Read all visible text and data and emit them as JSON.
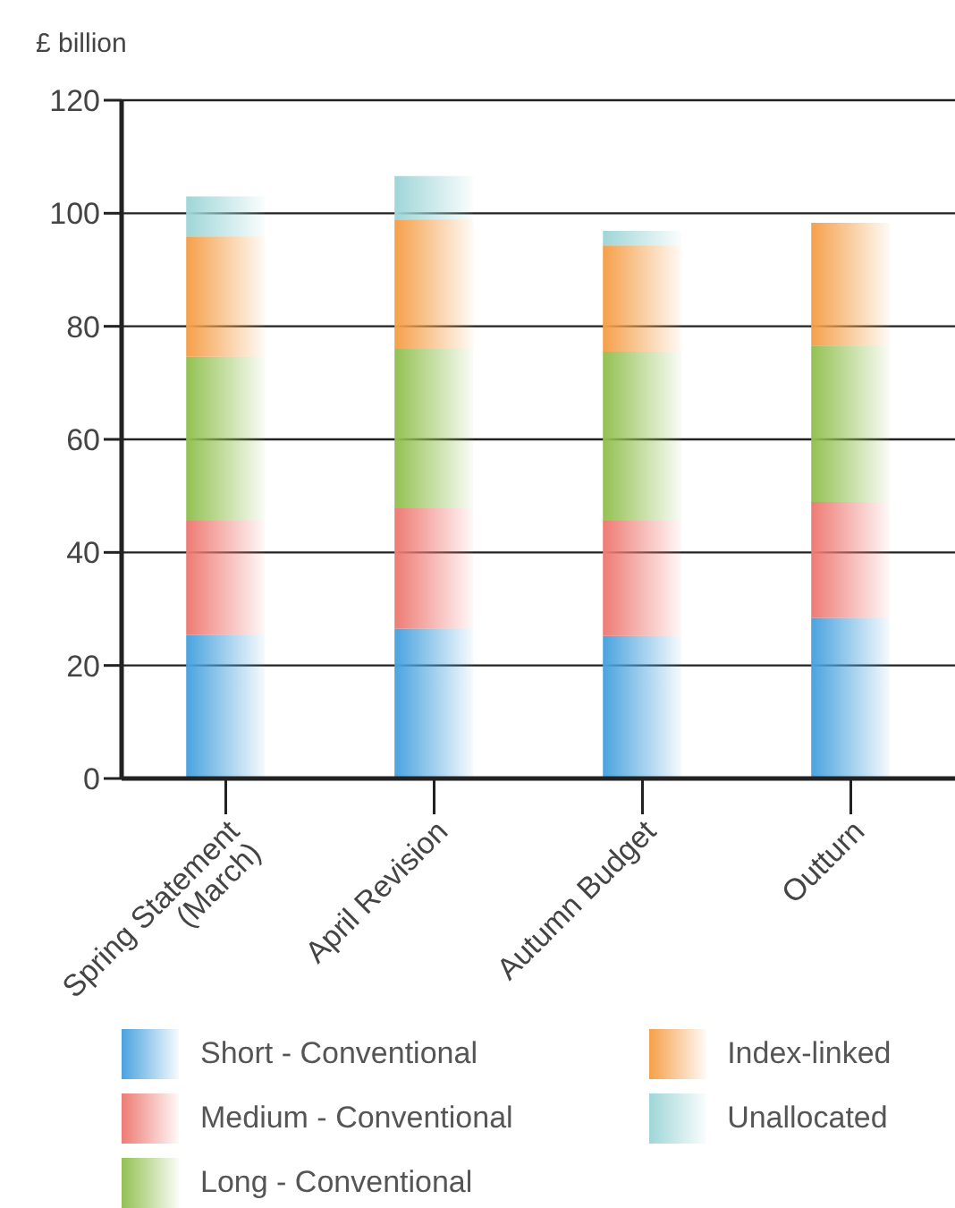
{
  "chart_data": {
    "type": "bar",
    "stacked": true,
    "ylabel": "£ billion",
    "categories": [
      "Spring Statement (March)",
      "April Revision",
      "Autumn Budget",
      "Outturn"
    ],
    "series": [
      {
        "name": "Short - Conventional",
        "color": "#4aa3df",
        "values": [
          25.4,
          26.5,
          25.2,
          28.4
        ]
      },
      {
        "name": "Medium - Conventional",
        "color": "#ee7b74",
        "values": [
          20.2,
          21.3,
          20.4,
          20.5
        ]
      },
      {
        "name": "Long - Conventional",
        "color": "#93c152",
        "values": [
          29.0,
          28.2,
          29.9,
          27.7
        ]
      },
      {
        "name": "Index-linked",
        "color": "#f5a04a",
        "values": [
          21.3,
          22.9,
          18.8,
          21.7
        ]
      },
      {
        "name": "Unallocated",
        "color": "#9fd6d8",
        "values": [
          7.1,
          7.7,
          2.6,
          null
        ]
      }
    ],
    "ylim": [
      0,
      120
    ],
    "yticks": [
      0,
      20,
      40,
      60,
      80,
      100,
      120
    ],
    "grid": "y",
    "legend": "bottom"
  }
}
